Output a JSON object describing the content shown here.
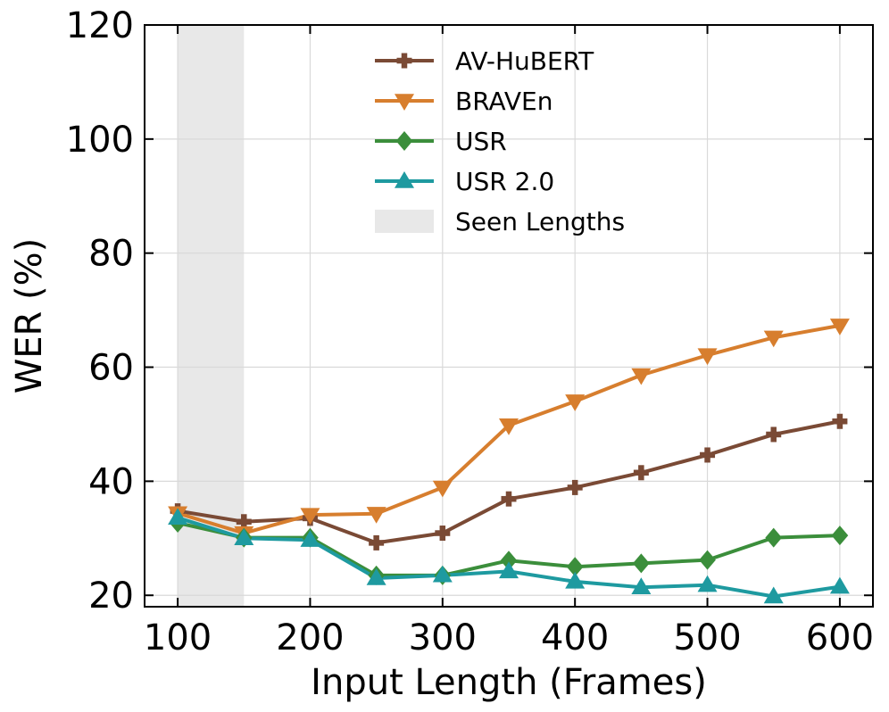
{
  "chart_data": {
    "type": "line",
    "xlabel": "Input Length (Frames)",
    "ylabel": "WER (%)",
    "xlim": [
      75,
      625
    ],
    "ylim": [
      18,
      120
    ],
    "xticks": [
      100,
      200,
      300,
      400,
      500,
      600
    ],
    "yticks": [
      20,
      40,
      60,
      80,
      100,
      120
    ],
    "grid": true,
    "legend_position": "top-center",
    "x": [
      100,
      150,
      200,
      250,
      300,
      350,
      400,
      450,
      500,
      550,
      600
    ],
    "shaded_region": {
      "name": "Seen Lengths",
      "x_range": [
        100,
        150
      ],
      "color": "#e8e8e8"
    },
    "series": [
      {
        "name": "AV-HuBERT",
        "marker": "plus",
        "color": "#7a4a35",
        "values": [
          34.8,
          32.9,
          33.5,
          29.2,
          30.9,
          36.9,
          38.9,
          41.5,
          44.6,
          48.2,
          50.5
        ]
      },
      {
        "name": "BRAVEn",
        "marker": "triangle-down",
        "color": "#d77e2e",
        "values": [
          34.4,
          30.9,
          34.1,
          34.3,
          38.9,
          49.8,
          54.0,
          58.6,
          62.1,
          65.2,
          67.3
        ]
      },
      {
        "name": "USR",
        "marker": "diamond",
        "color": "#3b8e3b",
        "values": [
          32.7,
          30.1,
          30.1,
          23.5,
          23.5,
          26.1,
          25.0,
          25.6,
          26.2,
          30.1,
          30.5
        ]
      },
      {
        "name": "USR 2.0",
        "marker": "triangle-up",
        "color": "#1e9aa0",
        "values": [
          33.6,
          30.0,
          29.7,
          23.0,
          23.5,
          24.2,
          22.4,
          21.4,
          21.8,
          19.8,
          21.5
        ]
      }
    ]
  }
}
